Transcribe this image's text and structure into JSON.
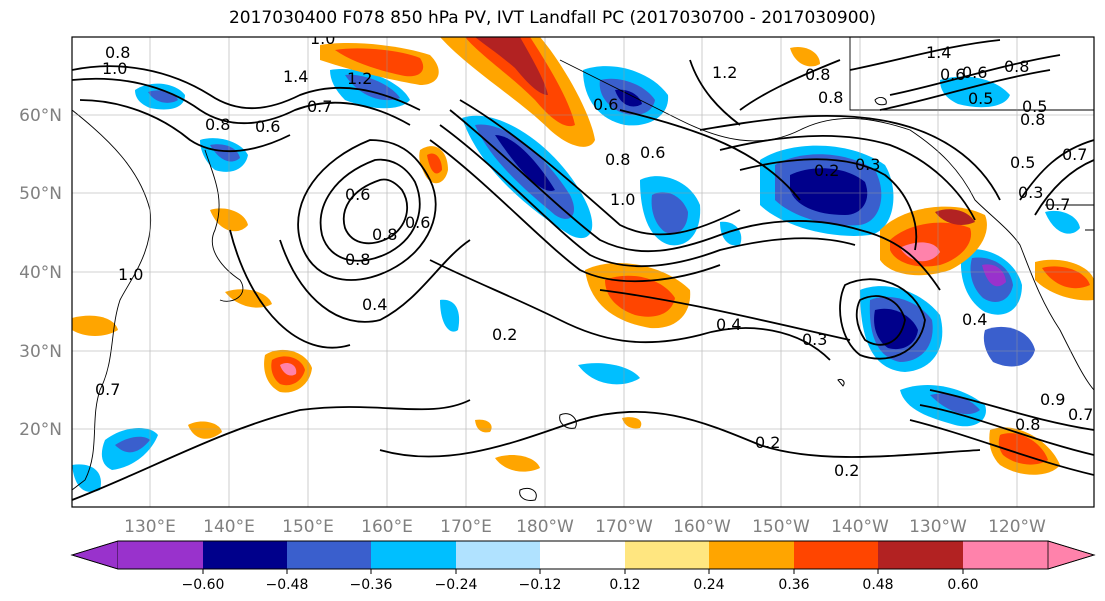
{
  "title": "2017030400 F078 850 hPa PV, IVT Landfall PC (2017030700 - 2017030900)",
  "map": {
    "lon_labels": [
      "130°E",
      "140°E",
      "150°E",
      "160°E",
      "170°E",
      "180°W",
      "170°W",
      "160°W",
      "150°W",
      "140°W",
      "130°W",
      "120°W"
    ],
    "lat_labels": [
      "60°N",
      "50°N",
      "40°N",
      "30°N",
      "20°N"
    ]
  },
  "colorbar": {
    "ticks": [
      "−0.60",
      "−0.48",
      "−0.36",
      "−0.24",
      "−0.12",
      "0.12",
      "0.24",
      "0.36",
      "0.48",
      "0.60"
    ],
    "colors": [
      "#9932cc",
      "#00008b",
      "#3a5fcd",
      "#00bfff",
      "#b0e2ff",
      "#ffffff",
      "#ffe680",
      "#ffa500",
      "#ff4500",
      "#b22222",
      "#ff82ab"
    ]
  },
  "contour_labels": [
    "0.8",
    "1.0",
    "1.0",
    "1.4",
    "1.2",
    "0.7",
    "0.6",
    "0.8",
    "0.6",
    "0.8",
    "0.8",
    "0.6",
    "0.8",
    "0.8",
    "0.7",
    "0.5",
    "1.0",
    "1.2",
    "1.4",
    "0.6",
    "0.5",
    "0.8",
    "0.6",
    "0.5",
    "0.7",
    "0.3",
    "0.2",
    "0.3",
    "0.6",
    "0.8",
    "0.6",
    "0.8",
    "0.4",
    "0.4",
    "0.2",
    "0.3",
    "0.2",
    "0.2",
    "0.7",
    "0.4",
    "0.7",
    "0.8",
    "0.9",
    "1.0"
  ]
}
